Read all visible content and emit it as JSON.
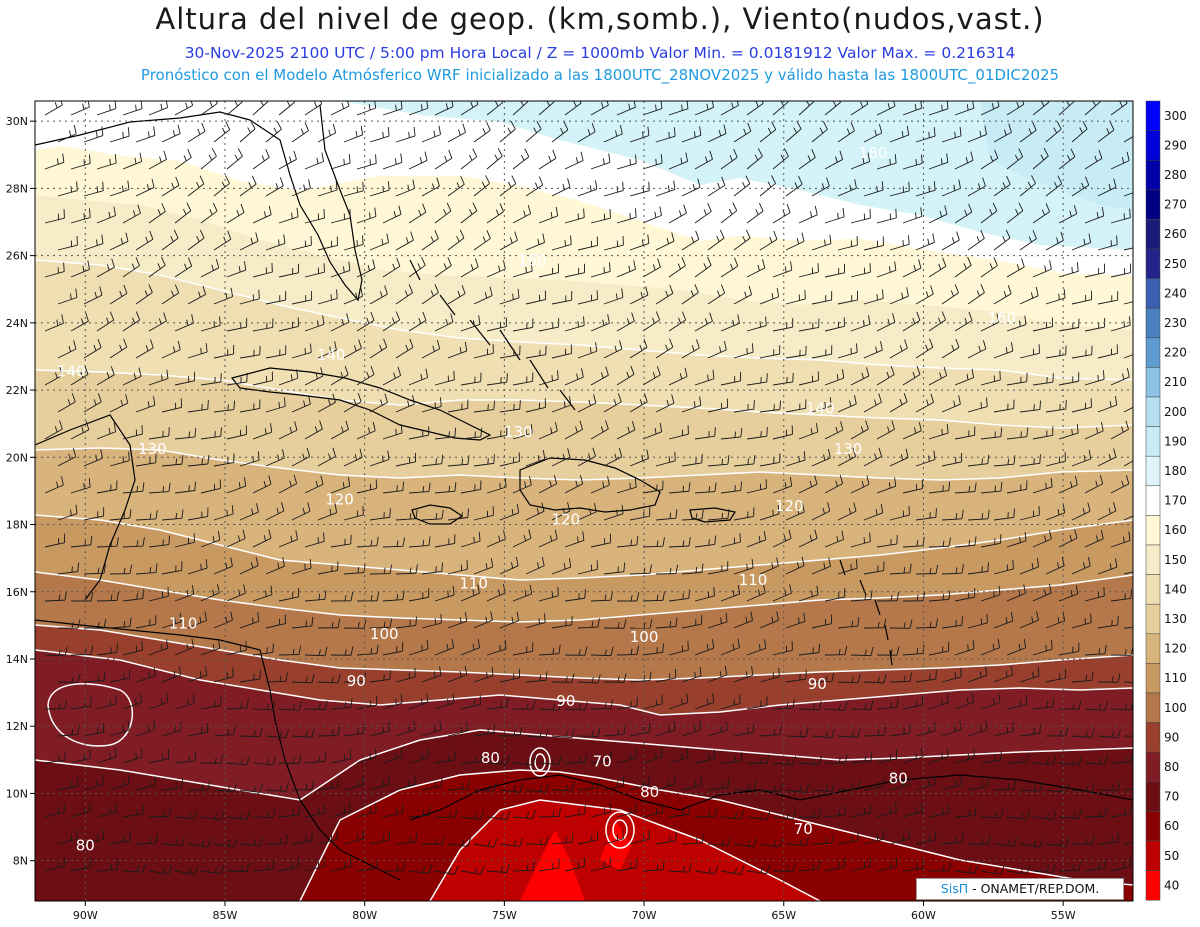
{
  "header": {
    "title": "Altura del nivel de geop. (km,somb.), Viento(nudos,vast.)",
    "subtitle": "30-Nov-2025  2100 UTC / 5:00 pm Hora Local / Z = 1000mb  Valor Min. = 0.0181912   Valor Max. = 0.216314",
    "model_line": "Pronóstico con el Modelo Atmósferico WRF inicializado a las 1800UTC_28NOV2025 y válido hasta las  1800UTC_01DIC2025"
  },
  "credit": {
    "brand": "SisΠ",
    "text": " - ONAMET/REP.DOM."
  },
  "axes": {
    "lat_labels": [
      "30N",
      "28N",
      "26N",
      "24N",
      "22N",
      "20N",
      "18N",
      "16N",
      "14N",
      "12N",
      "10N",
      "8N"
    ],
    "lat_values": [
      30,
      28,
      26,
      24,
      22,
      20,
      18,
      16,
      14,
      12,
      10,
      8
    ],
    "lon_labels": [
      "90W",
      "85W",
      "80W",
      "75W",
      "70W",
      "65W",
      "60W",
      "55W"
    ],
    "lon_values": [
      -90,
      -85,
      -80,
      -75,
      -70,
      -65,
      -60,
      -55
    ],
    "lon_range": [
      -91.8,
      -52.5
    ],
    "lat_range": [
      6.8,
      30.6
    ]
  },
  "colorbar": {
    "labels": [
      "300",
      "290",
      "280",
      "270",
      "260",
      "250",
      "240",
      "230",
      "220",
      "210",
      "200",
      "190",
      "180",
      "170",
      "160",
      "150",
      "140",
      "130",
      "120",
      "110",
      "100",
      "90",
      "80",
      "70",
      "60",
      "50",
      "40"
    ],
    "colors": [
      "#0000ff",
      "#0000d8",
      "#0000a8",
      "#000080",
      "#1a1a78",
      "#23238a",
      "#3a5fb0",
      "#4a80c0",
      "#5f9ad0",
      "#8cc2e4",
      "#b4e0f0",
      "#c8ecf6",
      "#def6fa",
      "#ffffff",
      "#fff7d6",
      "#f6ecc8",
      "#efdfb3",
      "#e6cf9c",
      "#d8b47c",
      "#c99962",
      "#b5784a",
      "#983f2e",
      "#801c24",
      "#6b0f14",
      "#8a0000",
      "#bf0000",
      "#ff0000"
    ]
  },
  "contours": {
    "labels": [
      {
        "text": "180",
        "lon": -61.8,
        "lat": 28.9
      },
      {
        "text": "160",
        "lon": -74.0,
        "lat": 25.7
      },
      {
        "text": "160",
        "lon": -57.2,
        "lat": 24.0
      },
      {
        "text": "140",
        "lon": -90.5,
        "lat": 22.4
      },
      {
        "text": "140",
        "lon": -81.2,
        "lat": 22.9
      },
      {
        "text": "140",
        "lon": -63.7,
        "lat": 21.3
      },
      {
        "text": "130",
        "lon": -87.6,
        "lat": 20.1
      },
      {
        "text": "130",
        "lon": -74.5,
        "lat": 20.6
      },
      {
        "text": "130",
        "lon": -62.7,
        "lat": 20.1
      },
      {
        "text": "120",
        "lon": -80.9,
        "lat": 18.6
      },
      {
        "text": "120",
        "lon": -72.8,
        "lat": 18.0
      },
      {
        "text": "120",
        "lon": -64.8,
        "lat": 18.4
      },
      {
        "text": "110",
        "lon": -76.1,
        "lat": 16.1
      },
      {
        "text": "110",
        "lon": -66.1,
        "lat": 16.2
      },
      {
        "text": "110",
        "lon": -86.5,
        "lat": 14.9
      },
      {
        "text": "100",
        "lon": -79.3,
        "lat": 14.6
      },
      {
        "text": "100",
        "lon": -70.0,
        "lat": 14.5
      },
      {
        "text": "90",
        "lon": -80.3,
        "lat": 13.2
      },
      {
        "text": "90",
        "lon": -72.8,
        "lat": 12.6
      },
      {
        "text": "90",
        "lon": -63.8,
        "lat": 13.1
      },
      {
        "text": "80",
        "lon": -75.5,
        "lat": 10.9
      },
      {
        "text": "80",
        "lon": -69.8,
        "lat": 9.9
      },
      {
        "text": "80",
        "lon": -60.9,
        "lat": 10.3
      },
      {
        "text": "80",
        "lon": -90.0,
        "lat": 8.3
      },
      {
        "text": "70",
        "lon": -71.5,
        "lat": 10.8
      },
      {
        "text": "70",
        "lon": -64.3,
        "lat": 8.8
      }
    ]
  }
}
